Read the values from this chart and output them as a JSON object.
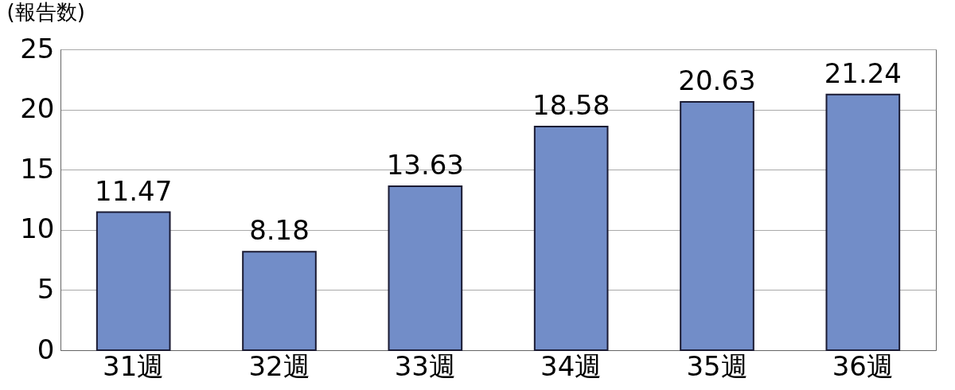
{
  "chart_data": {
    "type": "bar",
    "ylabel": "(報告数)",
    "categories": [
      "31週",
      "32週",
      "33週",
      "34週",
      "35週",
      "36週"
    ],
    "values": [
      11.47,
      8.18,
      13.63,
      18.58,
      20.63,
      21.24
    ],
    "color": "#728dc8",
    "ylim": [
      0,
      25
    ],
    "yticks": [
      0,
      5,
      10,
      15,
      20,
      25
    ],
    "grid": "y",
    "data_labels": true
  }
}
